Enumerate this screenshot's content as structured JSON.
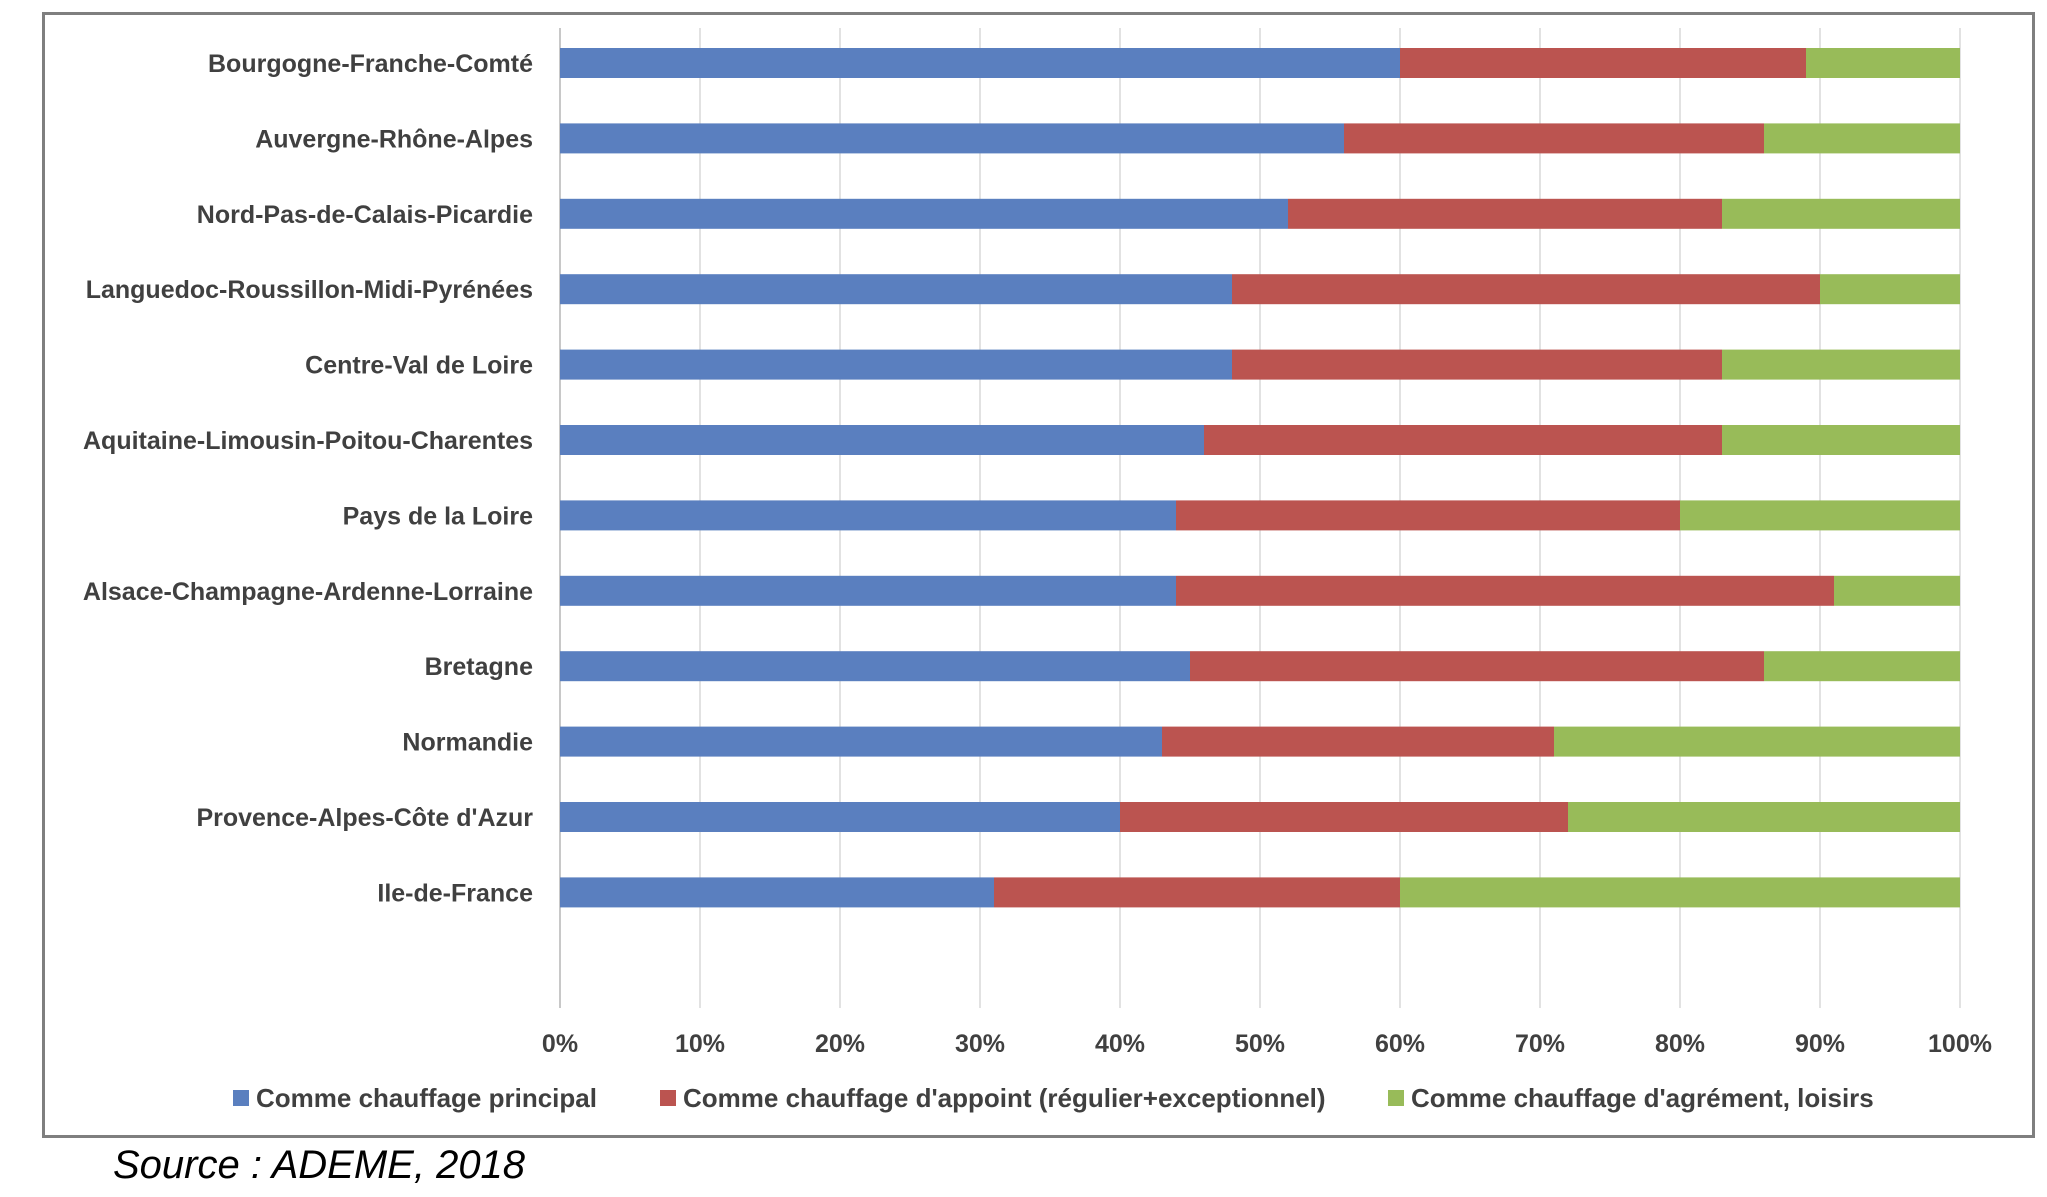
{
  "chart_data": {
    "type": "bar",
    "orientation": "horizontal",
    "stacked": "percent",
    "categories": [
      "Bourgogne-Franche-Comté",
      "Auvergne-Rhône-Alpes",
      "Nord-Pas-de-Calais-Picardie",
      "Languedoc-Roussillon-Midi-Pyrénées",
      "Centre-Val de Loire",
      "Aquitaine-Limousin-Poitou-Charentes",
      "Pays de la Loire",
      "Alsace-Champagne-Ardenne-Lorraine",
      "Bretagne",
      "Normandie",
      "Provence-Alpes-Côte d'Azur",
      "Ile-de-France"
    ],
    "series": [
      {
        "name": "Comme chauffage principal",
        "color": "#5a7fbf",
        "values": [
          60,
          56,
          52,
          48,
          48,
          46,
          44,
          44,
          45,
          43,
          40,
          31
        ]
      },
      {
        "name": "Comme chauffage d'appoint (régulier+exceptionnel)",
        "color": "#bb5450",
        "values": [
          29,
          30,
          31,
          42,
          35,
          37,
          36,
          47,
          41,
          28,
          32,
          29
        ]
      },
      {
        "name": "Comme chauffage d'agrément, loisirs",
        "color": "#98bb59",
        "values": [
          11,
          14,
          17,
          10,
          17,
          17,
          20,
          9,
          14,
          29,
          28,
          40
        ]
      }
    ],
    "xlim": [
      0,
      100
    ],
    "xticks": [
      "0%",
      "10%",
      "20%",
      "30%",
      "40%",
      "50%",
      "60%",
      "70%",
      "80%",
      "90%",
      "100%"
    ],
    "grid": true,
    "legend": "bottom"
  },
  "source": "Source : ADEME, 2018"
}
